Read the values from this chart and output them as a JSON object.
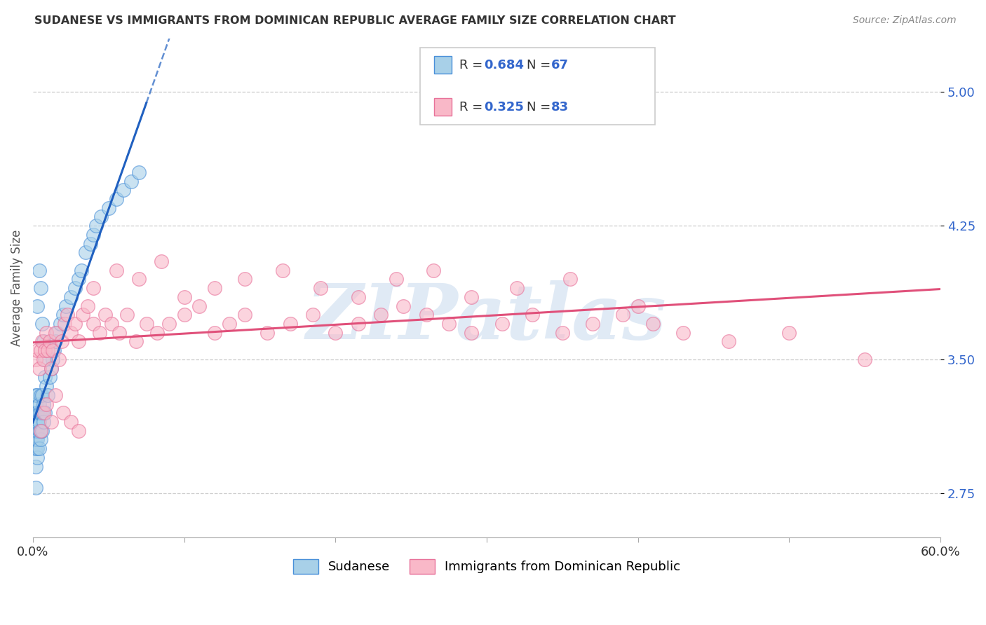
{
  "title": "SUDANESE VS IMMIGRANTS FROM DOMINICAN REPUBLIC AVERAGE FAMILY SIZE CORRELATION CHART",
  "source": "Source: ZipAtlas.com",
  "ylabel": "Average Family Size",
  "xlim": [
    0.0,
    0.6
  ],
  "ylim": [
    2.5,
    5.3
  ],
  "yticks": [
    2.75,
    3.5,
    4.25,
    5.0
  ],
  "xticks": [
    0.0,
    0.1,
    0.2,
    0.3,
    0.4,
    0.5,
    0.6
  ],
  "xtick_labels": [
    "0.0%",
    "",
    "",
    "",
    "",
    "",
    "60.0%"
  ],
  "legend_label1": "Sudanese",
  "legend_label2": "Immigrants from Dominican Republic",
  "color_blue_fill": "#a8d0e8",
  "color_pink_fill": "#f9b8c8",
  "color_blue_edge": "#4a90d9",
  "color_pink_edge": "#e8729a",
  "color_blue_line": "#2060c0",
  "color_pink_line": "#e0507a",
  "color_blue_text": "#3366cc",
  "watermark": "ZIPatlas",
  "watermark_color": "#ccddef",
  "blue_x": [
    0.001,
    0.001,
    0.001,
    0.001,
    0.002,
    0.002,
    0.002,
    0.002,
    0.002,
    0.002,
    0.002,
    0.002,
    0.003,
    0.003,
    0.003,
    0.003,
    0.003,
    0.003,
    0.003,
    0.004,
    0.004,
    0.004,
    0.004,
    0.004,
    0.005,
    0.005,
    0.005,
    0.005,
    0.006,
    0.006,
    0.006,
    0.007,
    0.007,
    0.008,
    0.008,
    0.009,
    0.01,
    0.011,
    0.012,
    0.013,
    0.014,
    0.015,
    0.016,
    0.018,
    0.02,
    0.022,
    0.025,
    0.028,
    0.03,
    0.032,
    0.035,
    0.038,
    0.04,
    0.042,
    0.045,
    0.05,
    0.055,
    0.06,
    0.065,
    0.07,
    0.002,
    0.003,
    0.004,
    0.005,
    0.006,
    0.007,
    0.008
  ],
  "blue_y": [
    3.0,
    3.05,
    3.1,
    3.15,
    2.9,
    3.0,
    3.05,
    3.1,
    3.15,
    3.2,
    3.25,
    3.3,
    2.95,
    3.0,
    3.05,
    3.1,
    3.15,
    3.2,
    3.3,
    3.0,
    3.1,
    3.15,
    3.2,
    3.25,
    3.05,
    3.1,
    3.2,
    3.3,
    3.1,
    3.2,
    3.3,
    3.15,
    3.25,
    3.2,
    3.4,
    3.35,
    3.3,
    3.4,
    3.45,
    3.5,
    3.55,
    3.6,
    3.65,
    3.7,
    3.75,
    3.8,
    3.85,
    3.9,
    3.95,
    4.0,
    4.1,
    4.15,
    4.2,
    4.25,
    4.3,
    4.35,
    4.4,
    4.45,
    4.5,
    4.55,
    2.78,
    3.8,
    4.0,
    3.9,
    3.7,
    3.6,
    3.5
  ],
  "pink_x": [
    0.002,
    0.003,
    0.004,
    0.005,
    0.006,
    0.007,
    0.008,
    0.009,
    0.01,
    0.011,
    0.012,
    0.013,
    0.015,
    0.017,
    0.019,
    0.021,
    0.023,
    0.025,
    0.028,
    0.03,
    0.033,
    0.036,
    0.04,
    0.044,
    0.048,
    0.052,
    0.057,
    0.062,
    0.068,
    0.075,
    0.082,
    0.09,
    0.1,
    0.11,
    0.12,
    0.13,
    0.14,
    0.155,
    0.17,
    0.185,
    0.2,
    0.215,
    0.23,
    0.245,
    0.26,
    0.275,
    0.29,
    0.31,
    0.33,
    0.35,
    0.37,
    0.39,
    0.41,
    0.43,
    0.46,
    0.5,
    0.55,
    0.005,
    0.007,
    0.009,
    0.012,
    0.015,
    0.02,
    0.025,
    0.03,
    0.04,
    0.055,
    0.07,
    0.085,
    0.1,
    0.12,
    0.14,
    0.165,
    0.19,
    0.215,
    0.24,
    0.265,
    0.29,
    0.32,
    0.355,
    0.4
  ],
  "pink_y": [
    3.5,
    3.55,
    3.45,
    3.55,
    3.6,
    3.5,
    3.55,
    3.65,
    3.55,
    3.6,
    3.45,
    3.55,
    3.65,
    3.5,
    3.6,
    3.7,
    3.75,
    3.65,
    3.7,
    3.6,
    3.75,
    3.8,
    3.7,
    3.65,
    3.75,
    3.7,
    3.65,
    3.75,
    3.6,
    3.7,
    3.65,
    3.7,
    3.75,
    3.8,
    3.65,
    3.7,
    3.75,
    3.65,
    3.7,
    3.75,
    3.65,
    3.7,
    3.75,
    3.8,
    3.75,
    3.7,
    3.65,
    3.7,
    3.75,
    3.65,
    3.7,
    3.75,
    3.7,
    3.65,
    3.6,
    3.65,
    3.5,
    3.1,
    3.2,
    3.25,
    3.15,
    3.3,
    3.2,
    3.15,
    3.1,
    3.9,
    4.0,
    3.95,
    4.05,
    3.85,
    3.9,
    3.95,
    4.0,
    3.9,
    3.85,
    3.95,
    4.0,
    3.85,
    3.9,
    3.95,
    3.8
  ],
  "blue_line_x": [
    0.0,
    0.3
  ],
  "blue_line_solid": [
    0.001,
    0.08
  ],
  "blue_line_dash_lo": [
    0.0,
    0.001
  ],
  "blue_line_dash_hi": [
    0.08,
    0.3
  ],
  "pink_line_x": [
    0.0,
    0.6
  ]
}
